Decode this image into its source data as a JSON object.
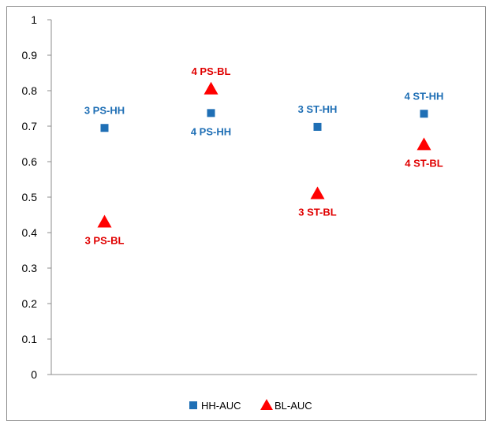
{
  "chart_data": {
    "type": "scatter",
    "title": "",
    "xlabel": "",
    "ylabel": "",
    "ylim": [
      0,
      1
    ],
    "yticks": [
      "0",
      "0.1",
      "0.2",
      "0.3",
      "0.4",
      "0.5",
      "0.6",
      "0.7",
      "0.8",
      "0.9",
      "1"
    ],
    "grid": false,
    "legend_position": "bottom",
    "series": [
      {
        "name": "HH-AUC",
        "marker": "square",
        "color": "#1f6fb5",
        "label_color": "#1f6fb5",
        "points": [
          {
            "x": 1,
            "y": 0.695,
            "label": "3 PS-HH",
            "label_side": "above"
          },
          {
            "x": 2,
            "y": 0.737,
            "label": "4 PS-HH",
            "label_side": "below"
          },
          {
            "x": 3,
            "y": 0.698,
            "label": "3 ST-HH",
            "label_side": "above"
          },
          {
            "x": 4,
            "y": 0.735,
            "label": "4 ST-HH",
            "label_side": "above"
          }
        ]
      },
      {
        "name": "BL-AUC",
        "marker": "triangle",
        "color": "#ff0000",
        "label_color": "#e00000",
        "points": [
          {
            "x": 1,
            "y": 0.43,
            "label": "3 PS-BL",
            "label_side": "below"
          },
          {
            "x": 2,
            "y": 0.805,
            "label": "4 PS-BL",
            "label_side": "above"
          },
          {
            "x": 3,
            "y": 0.51,
            "label": "3 ST-BL",
            "label_side": "below"
          },
          {
            "x": 4,
            "y": 0.648,
            "label": "4 ST-BL",
            "label_side": "below"
          }
        ]
      }
    ]
  }
}
